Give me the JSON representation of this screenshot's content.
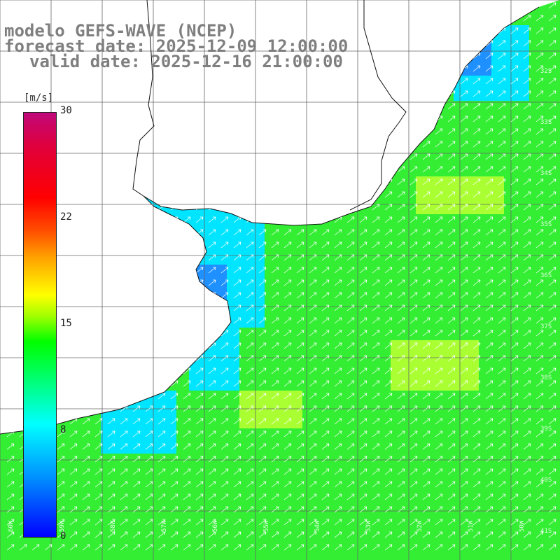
{
  "title": {
    "line1": "modelo GEFS-WAVE (NCEP)",
    "line2": "forecast date: 2025-12-09 12:00:00",
    "line3": "valid date: 2025-12-16 21:00:00"
  },
  "colorbar": {
    "unit": "[m/s]",
    "ticks": [
      "30",
      "22",
      "15",
      "8",
      "0"
    ],
    "min": 0,
    "max": 30,
    "colors": [
      "#0000ff",
      "#00ffff",
      "#00ff00",
      "#ffff00",
      "#ff0000",
      "#c0087a"
    ]
  },
  "map": {
    "land_color": "#ffffff",
    "grid_color": "#555555",
    "sea_colors": {
      "slow": "#1e90ff",
      "mid": "#00e5ff",
      "fast": "#33ee33",
      "faster": "#aaff33"
    },
    "lat_labels": [
      "32S",
      "33S",
      "34S",
      "35S",
      "36S",
      "37S",
      "38S",
      "39S",
      "40S",
      "41S"
    ],
    "lon_labels": [
      "60W",
      "59W",
      "58W",
      "57W",
      "56W",
      "55W",
      "54W",
      "53W",
      "52W",
      "51W",
      "50W"
    ]
  }
}
